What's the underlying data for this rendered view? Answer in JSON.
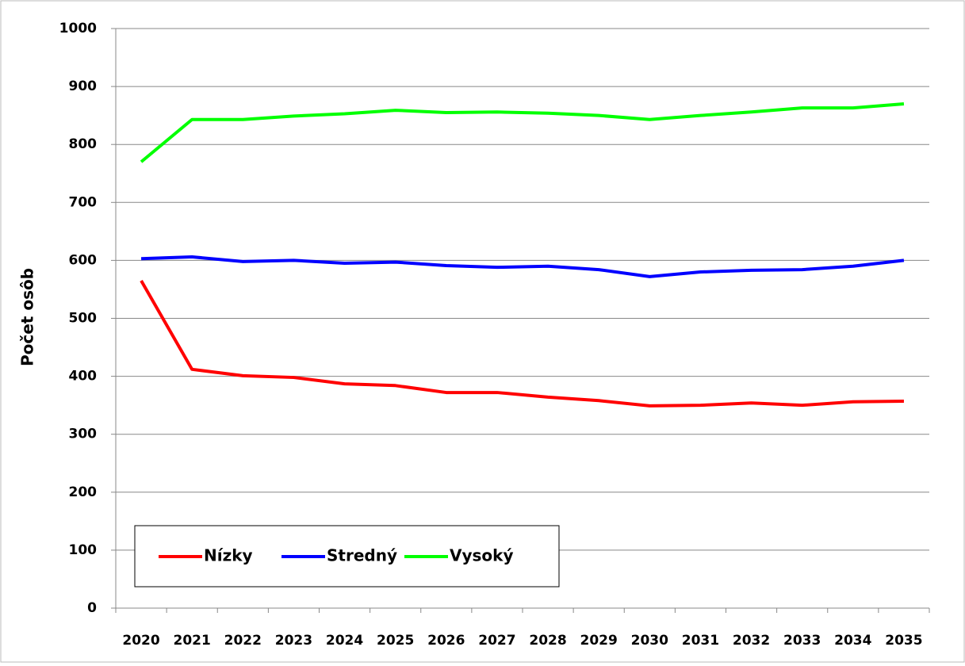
{
  "chart_data": {
    "type": "line",
    "y_label": "Počet osôb",
    "categories": [
      "2020",
      "2021",
      "2022",
      "2023",
      "2024",
      "2025",
      "2026",
      "2027",
      "2028",
      "2029",
      "2030",
      "2031",
      "2032",
      "2033",
      "2034",
      "2035"
    ],
    "series": [
      {
        "name": "Nízky",
        "color": "#ff0000",
        "values": [
          565,
          412,
          401,
          398,
          387,
          384,
          372,
          372,
          364,
          358,
          349,
          350,
          354,
          350,
          356,
          357
        ]
      },
      {
        "name": "Stredný",
        "color": "#0000ff",
        "values": [
          603,
          606,
          598,
          600,
          595,
          597,
          591,
          588,
          590,
          584,
          572,
          580,
          583,
          584,
          590,
          600
        ]
      },
      {
        "name": "Vysoký",
        "color": "#00ff00",
        "values": [
          770,
          843,
          843,
          849,
          853,
          859,
          855,
          856,
          854,
          850,
          843,
          850,
          856,
          863,
          863,
          870
        ]
      }
    ],
    "ylim": [
      0,
      1000
    ],
    "yticks": [
      0,
      100,
      200,
      300,
      400,
      500,
      600,
      700,
      800,
      900,
      1000
    ],
    "grid": true,
    "legend": "lower left"
  }
}
